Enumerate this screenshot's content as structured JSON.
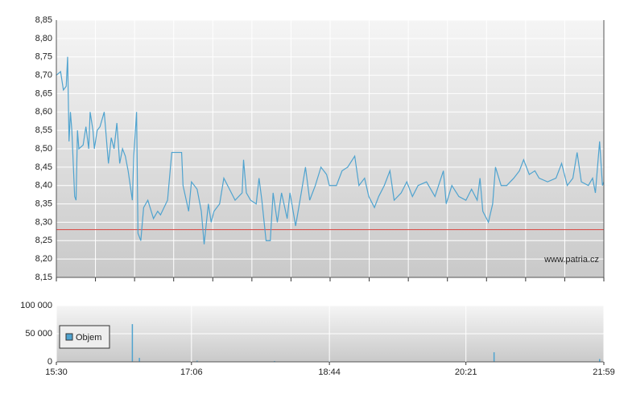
{
  "chart_data": [
    {
      "type": "line",
      "x": [
        "15:30",
        "15:33",
        "15:35",
        "15:37",
        "15:38",
        "15:39",
        "15:40",
        "15:41",
        "15:43",
        "15:44",
        "15:45",
        "15:46",
        "15:49",
        "15:51",
        "15:53",
        "15:54",
        "15:56",
        "15:57",
        "15:59",
        "16:01",
        "16:04",
        "16:07",
        "16:09",
        "16:11",
        "16:13",
        "16:15",
        "16:17",
        "16:19",
        "16:21",
        "16:24",
        "16:25",
        "16:27",
        "16:28",
        "16:30",
        "16:32",
        "16:35",
        "16:39",
        "16:42",
        "16:44",
        "16:49",
        "16:52",
        "16:59",
        "17:00",
        "17:04",
        "17:06",
        "17:10",
        "17:13",
        "17:15",
        "17:18",
        "17:20",
        "17:22",
        "17:26",
        "17:29",
        "17:33",
        "17:37",
        "17:42",
        "17:43",
        "17:45",
        "17:48",
        "17:52",
        "17:54",
        "17:56",
        "17:59",
        "18:02",
        "18:04",
        "18:07",
        "18:10",
        "18:14",
        "18:16",
        "18:20",
        "18:24",
        "18:27",
        "18:30",
        "18:34",
        "18:38",
        "18:42",
        "18:44",
        "18:49",
        "18:53",
        "18:57",
        "19:02",
        "19:05",
        "19:09",
        "19:12",
        "19:16",
        "19:19",
        "19:23",
        "19:27",
        "19:30",
        "19:35",
        "19:39",
        "19:43",
        "19:47",
        "19:53",
        "19:59",
        "20:05",
        "20:07",
        "20:11",
        "20:16",
        "20:21",
        "20:25",
        "20:29",
        "20:31",
        "20:33",
        "20:37",
        "20:40",
        "20:42",
        "20:46",
        "20:50",
        "20:55",
        "20:59",
        "21:02",
        "21:06",
        "21:10",
        "21:13",
        "21:19",
        "21:25",
        "21:29",
        "21:33",
        "21:37",
        "21:40",
        "21:43",
        "21:48",
        "21:51",
        "21:53",
        "21:56",
        "21:58",
        "21:59"
      ],
      "series": [
        {
          "color": "#4fa3cf",
          "values": [
            8.7,
            8.71,
            8.66,
            8.67,
            8.75,
            8.52,
            8.6,
            8.55,
            8.37,
            8.36,
            8.55,
            8.5,
            8.51,
            8.56,
            8.5,
            8.6,
            8.55,
            8.5,
            8.55,
            8.56,
            8.6,
            8.46,
            8.53,
            8.5,
            8.57,
            8.46,
            8.5,
            8.48,
            8.44,
            8.36,
            8.48,
            8.6,
            8.27,
            8.25,
            8.34,
            8.36,
            8.31,
            8.33,
            8.32,
            8.36,
            8.49,
            8.49,
            8.4,
            8.33,
            8.41,
            8.39,
            8.33,
            8.24,
            8.35,
            8.3,
            8.33,
            8.35,
            8.42,
            8.39,
            8.36,
            8.38,
            8.47,
            8.38,
            8.36,
            8.35,
            8.42,
            8.36,
            8.25,
            8.25,
            8.38,
            8.3,
            8.38,
            8.31,
            8.38,
            8.29,
            8.38,
            8.45,
            8.36,
            8.4,
            8.45,
            8.43,
            8.4,
            8.4,
            8.44,
            8.45,
            8.48,
            8.4,
            8.42,
            8.37,
            8.34,
            8.37,
            8.4,
            8.44,
            8.36,
            8.38,
            8.41,
            8.37,
            8.4,
            8.41,
            8.37,
            8.44,
            8.35,
            8.4,
            8.37,
            8.36,
            8.39,
            8.36,
            8.42,
            8.33,
            8.3,
            8.35,
            8.45,
            8.4,
            8.4,
            8.42,
            8.44,
            8.47,
            8.43,
            8.44,
            8.42,
            8.41,
            8.42,
            8.46,
            8.4,
            8.42,
            8.49,
            8.41,
            8.4,
            8.42,
            8.38,
            8.52,
            8.4,
            8.41
          ]
        }
      ],
      "reference_line": {
        "value": 8.28,
        "color": "#d9534f"
      },
      "xlim": [
        "15:30",
        "21:59"
      ],
      "ylim": [
        8.15,
        8.85
      ],
      "yticks": [
        {
          "value": 8.15,
          "label": "8,15"
        },
        {
          "value": 8.2,
          "label": "8,20"
        },
        {
          "value": 8.25,
          "label": "8,25"
        },
        {
          "value": 8.3,
          "label": "8,30"
        },
        {
          "value": 8.35,
          "label": "8,35"
        },
        {
          "value": 8.4,
          "label": "8,40"
        },
        {
          "value": 8.45,
          "label": "8,45"
        },
        {
          "value": 8.5,
          "label": "8,50"
        },
        {
          "value": 8.55,
          "label": "8,55"
        },
        {
          "value": 8.6,
          "label": "8,60"
        },
        {
          "value": 8.65,
          "label": "8,65"
        },
        {
          "value": 8.7,
          "label": "8,70"
        },
        {
          "value": 8.75,
          "label": "8,75"
        },
        {
          "value": 8.8,
          "label": "8,80"
        },
        {
          "value": 8.85,
          "label": "8,85"
        }
      ],
      "grid": true,
      "watermark": "www.patria.cz"
    },
    {
      "type": "bar",
      "x": [
        "16:24",
        "16:29",
        "17:10",
        "18:05",
        "18:44",
        "20:41",
        "21:56"
      ],
      "series": [
        {
          "name": "Objem",
          "color": "#4fa3cf",
          "values": [
            67000,
            7000,
            2000,
            1500,
            2000,
            17000,
            5000
          ]
        }
      ],
      "xlim": [
        "15:30",
        "21:59"
      ],
      "xticks": [
        "15:30",
        "17:06",
        "18:44",
        "20:21",
        "21:59"
      ],
      "ylim": [
        0,
        100000
      ],
      "yticks": [
        0,
        {
          "value": 50000,
          "label": "50 000"
        },
        {
          "value": 100000,
          "label": "100 000"
        }
      ],
      "grid": true,
      "legend": "upper-left"
    }
  ]
}
